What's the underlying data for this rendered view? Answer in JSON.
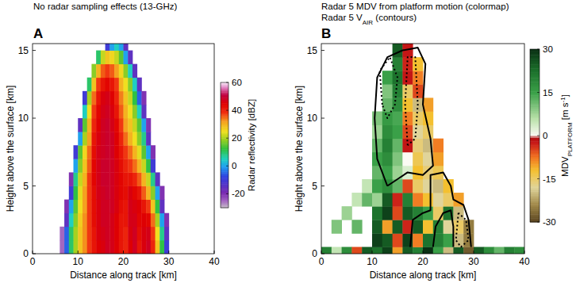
{
  "chart_data": [
    {
      "type": "heatmap",
      "title": "A",
      "subtitle": [
        [
          "No radar sampling effects (13-GHz)"
        ]
      ],
      "xlabel": "Distance along track [km]",
      "ylabel": "Height above the surface [km]",
      "xlim": [
        0,
        40
      ],
      "ylim": [
        0,
        15.5
      ],
      "xticks": [
        0,
        10,
        20,
        30,
        40
      ],
      "yticks": [
        0,
        5,
        10,
        15
      ],
      "x_edges": [
        6,
        7,
        8,
        9,
        10,
        11,
        12,
        13,
        14,
        15,
        16,
        17,
        18,
        19,
        20,
        21,
        22,
        23,
        24,
        25,
        26,
        27,
        28,
        29,
        30,
        31
      ],
      "y_edges": [
        0,
        1,
        2,
        3,
        4,
        5,
        6,
        7,
        8,
        9,
        10,
        11,
        12,
        13,
        14,
        15,
        16
      ],
      "z": [
        [
          -25,
          -5,
          10,
          20,
          28,
          33,
          38,
          42,
          45,
          46,
          48,
          47,
          45,
          42,
          40,
          45,
          48,
          42,
          46,
          48,
          40,
          28,
          12,
          -10,
          null
        ],
        [
          -25,
          -5,
          10,
          20,
          28,
          33,
          38,
          42,
          46,
          47,
          48,
          47,
          45,
          42,
          40,
          46,
          48,
          43,
          46,
          47,
          38,
          25,
          8,
          -15,
          null
        ],
        [
          null,
          -15,
          5,
          18,
          27,
          33,
          38,
          43,
          46,
          48,
          48,
          47,
          45,
          42,
          42,
          47,
          47,
          44,
          45,
          44,
          35,
          20,
          0,
          -20,
          null
        ],
        [
          null,
          -20,
          0,
          15,
          25,
          32,
          38,
          43,
          46,
          48,
          48,
          48,
          46,
          43,
          42,
          47,
          46,
          45,
          42,
          38,
          28,
          12,
          -15,
          null,
          null
        ],
        [
          null,
          null,
          -10,
          12,
          24,
          32,
          38,
          43,
          47,
          48,
          49,
          48,
          46,
          44,
          43,
          46,
          44,
          42,
          36,
          30,
          18,
          0,
          -20,
          null,
          null
        ],
        [
          null,
          null,
          -20,
          8,
          22,
          30,
          38,
          44,
          47,
          49,
          49,
          48,
          46,
          44,
          42,
          42,
          40,
          36,
          30,
          22,
          8,
          -15,
          null,
          null,
          null
        ],
        [
          null,
          null,
          null,
          0,
          18,
          28,
          36,
          44,
          47,
          49,
          49,
          48,
          46,
          43,
          40,
          38,
          35,
          30,
          22,
          12,
          -10,
          null,
          null,
          null,
          null
        ],
        [
          null,
          null,
          null,
          -10,
          15,
          26,
          35,
          43,
          47,
          48,
          49,
          48,
          45,
          42,
          38,
          35,
          30,
          24,
          15,
          0,
          -20,
          null,
          null,
          null,
          null
        ],
        [
          null,
          null,
          null,
          null,
          0,
          20,
          32,
          42,
          46,
          48,
          49,
          48,
          45,
          40,
          35,
          30,
          25,
          18,
          8,
          -15,
          null,
          null,
          null,
          null,
          null
        ],
        [
          null,
          null,
          null,
          null,
          -15,
          15,
          30,
          40,
          45,
          48,
          49,
          47,
          44,
          38,
          32,
          28,
          22,
          15,
          0,
          -20,
          null,
          null,
          null,
          null,
          null
        ],
        [
          null,
          null,
          null,
          null,
          null,
          5,
          25,
          38,
          44,
          47,
          48,
          46,
          42,
          36,
          30,
          25,
          18,
          5,
          -15,
          null,
          null,
          null,
          null,
          null,
          null
        ],
        [
          null,
          null,
          null,
          null,
          null,
          -10,
          20,
          35,
          42,
          46,
          47,
          45,
          40,
          34,
          28,
          22,
          12,
          -5,
          -20,
          null,
          null,
          null,
          null,
          null,
          null
        ],
        [
          null,
          null,
          null,
          null,
          null,
          null,
          10,
          28,
          38,
          42,
          44,
          42,
          38,
          30,
          25,
          18,
          5,
          -15,
          null,
          null,
          null,
          null,
          null,
          null,
          null
        ],
        [
          null,
          null,
          null,
          null,
          null,
          null,
          null,
          18,
          30,
          36,
          38,
          36,
          32,
          26,
          18,
          5,
          -15,
          null,
          null,
          null,
          null,
          null,
          null,
          null,
          null
        ],
        [
          null,
          null,
          null,
          null,
          null,
          null,
          null,
          null,
          10,
          22,
          28,
          26,
          22,
          15,
          0,
          -15,
          null,
          null,
          null,
          null,
          null,
          null,
          null,
          null,
          null
        ],
        [
          null,
          null,
          null,
          null,
          null,
          null,
          null,
          null,
          null,
          null,
          -10,
          0,
          5,
          0,
          -15,
          null,
          null,
          null,
          null,
          null,
          null,
          null,
          null,
          null,
          null
        ]
      ],
      "colorbar_lim": [
        -30,
        60
      ],
      "colorbar_ticks": [
        -20,
        0,
        20,
        40,
        60
      ],
      "colorbar_label": [
        "Radar reflectivity [dBZ]"
      ]
    },
    {
      "type": "heatmap",
      "title": "B",
      "subtitle": [
        [
          "Radar 5 MDV from platform motion (colormap)"
        ],
        [
          "Radar 5 V",
          "AIR",
          " (contours)"
        ]
      ],
      "xlabel": "Distance along track [km]",
      "ylabel": "Height above the surface [km]",
      "xlim": [
        0,
        40
      ],
      "ylim": [
        0,
        15.5
      ],
      "xticks": [
        0,
        10,
        20,
        30,
        40
      ],
      "yticks": [
        0,
        5,
        10,
        15
      ],
      "x_edges": [
        0,
        2,
        4,
        6,
        8,
        10,
        12,
        14,
        16,
        18,
        20,
        22,
        24,
        26,
        28,
        30,
        32,
        34,
        36,
        38,
        40
      ],
      "y_edges": [
        0,
        0.5,
        1.5,
        2.5,
        3.5,
        4.5,
        5.5,
        6.5,
        7.5,
        8.5,
        9.5,
        10.5,
        11.5,
        12.5,
        13.5,
        14.5,
        15.5
      ],
      "z": [
        [
          20,
          5,
          18,
          -5,
          25,
          22,
          28,
          -10,
          25,
          20,
          30,
          15,
          -20,
          25,
          -28,
          25,
          18,
          12,
          20,
          18
        ],
        [
          null,
          null,
          null,
          null,
          null,
          28,
          25,
          -5,
          28,
          -8,
          22,
          20,
          15,
          -20,
          -25,
          null,
          null,
          null,
          null,
          null
        ],
        [
          null,
          10,
          null,
          12,
          null,
          25,
          -10,
          25,
          -3,
          25,
          -12,
          20,
          -18,
          -15,
          -25,
          null,
          null,
          null,
          null,
          null
        ],
        [
          null,
          null,
          8,
          null,
          null,
          22,
          28,
          -5,
          25,
          20,
          15,
          -15,
          22,
          -20,
          null,
          null,
          null,
          null,
          null,
          null
        ],
        [
          null,
          null,
          null,
          5,
          12,
          8,
          25,
          -3,
          20,
          -8,
          -12,
          -18,
          -15,
          -10,
          null,
          null,
          null,
          null,
          null,
          null
        ],
        [
          null,
          null,
          null,
          null,
          5,
          15,
          18,
          12,
          -5,
          -15,
          -18,
          -20,
          -12,
          null,
          null,
          null,
          null,
          null,
          null,
          null
        ],
        [
          null,
          null,
          null,
          null,
          null,
          12,
          15,
          8,
          3,
          -12,
          -16,
          -14,
          null,
          null,
          null,
          null,
          null,
          null,
          null,
          null
        ],
        [
          null,
          null,
          null,
          null,
          null,
          15,
          18,
          10,
          0,
          -14,
          -18,
          -10,
          null,
          null,
          null,
          null,
          null,
          null,
          null,
          null
        ],
        [
          null,
          null,
          null,
          null,
          null,
          12,
          20,
          12,
          -2,
          -16,
          -20,
          -8,
          null,
          null,
          null,
          null,
          null,
          null,
          null,
          null
        ],
        [
          null,
          null,
          null,
          null,
          null,
          8,
          18,
          15,
          -5,
          -18,
          -15,
          null,
          null,
          null,
          null,
          null,
          null,
          null,
          null,
          null
        ],
        [
          null,
          null,
          null,
          null,
          null,
          10,
          16,
          14,
          -8,
          -15,
          -12,
          null,
          null,
          null,
          null,
          null,
          null,
          null,
          null,
          null
        ],
        [
          null,
          null,
          null,
          null,
          null,
          null,
          12,
          18,
          -12,
          -20,
          -10,
          null,
          null,
          null,
          null,
          null,
          null,
          null,
          null,
          null
        ],
        [
          null,
          null,
          null,
          null,
          null,
          null,
          10,
          20,
          -15,
          -5,
          null,
          null,
          null,
          null,
          null,
          null,
          null,
          null,
          null,
          null
        ],
        [
          null,
          null,
          null,
          null,
          null,
          null,
          15,
          22,
          -2,
          -8,
          null,
          null,
          null,
          null,
          null,
          null,
          null,
          null,
          null,
          null
        ],
        [
          null,
          null,
          null,
          null,
          null,
          null,
          null,
          20,
          -3,
          -12,
          null,
          null,
          null,
          null,
          null,
          null,
          null,
          null,
          null,
          null
        ],
        [
          null,
          null,
          null,
          null,
          null,
          null,
          null,
          25,
          -2,
          null,
          null,
          null,
          null,
          null,
          null,
          null,
          null,
          null,
          null,
          null
        ]
      ],
      "contours": [
        {
          "line_style": "solid",
          "x": [
            13,
            11,
            10.5,
            11,
            13,
            16,
            19,
            20.5,
            20,
            21.5,
            22,
            20,
            17,
            15,
            13
          ],
          "y": [
            5,
            7,
            10,
            13,
            14.5,
            15,
            15.2,
            14,
            11,
            8.5,
            6.5,
            5.8,
            6,
            5.5,
            5
          ]
        },
        {
          "line_style": "solid",
          "x": [
            17.5,
            18,
            20,
            21.5,
            21.5,
            24,
            25.5,
            26,
            28,
            29,
            29.5
          ],
          "y": [
            0.5,
            2.5,
            3,
            3.2,
            5.8,
            6,
            5,
            4,
            3.6,
            2.5,
            0.5
          ]
        },
        {
          "line_style": "solid",
          "x": [
            22,
            22.5,
            24,
            25.5,
            26,
            26
          ],
          "y": [
            0.5,
            2,
            3,
            3.2,
            2,
            0.5
          ]
        },
        {
          "line_style": "dotted",
          "x": [
            12,
            11.5,
            13.5,
            15,
            14.5,
            13,
            12
          ],
          "y": [
            11,
            13.5,
            14.5,
            13,
            11,
            10,
            11
          ]
        },
        {
          "line_style": "dotted",
          "x": [
            17,
            16.5,
            17,
            18.5,
            19,
            18.5,
            17
          ],
          "y": [
            8,
            11,
            14.5,
            14.5,
            11,
            8.5,
            8
          ]
        },
        {
          "line_style": "dotted",
          "x": [
            27,
            26.5,
            27.5,
            29,
            28.5,
            27
          ],
          "y": [
            3,
            1,
            0.5,
            1,
            2.5,
            3
          ]
        }
      ],
      "colorbar_lim": [
        -30,
        30
      ],
      "colorbar_ticks": [
        -30,
        -15,
        0,
        15,
        30
      ],
      "colorbar_label": [
        "MDV",
        "PLATFORM",
        " [m s",
        "-1",
        "]"
      ]
    }
  ]
}
